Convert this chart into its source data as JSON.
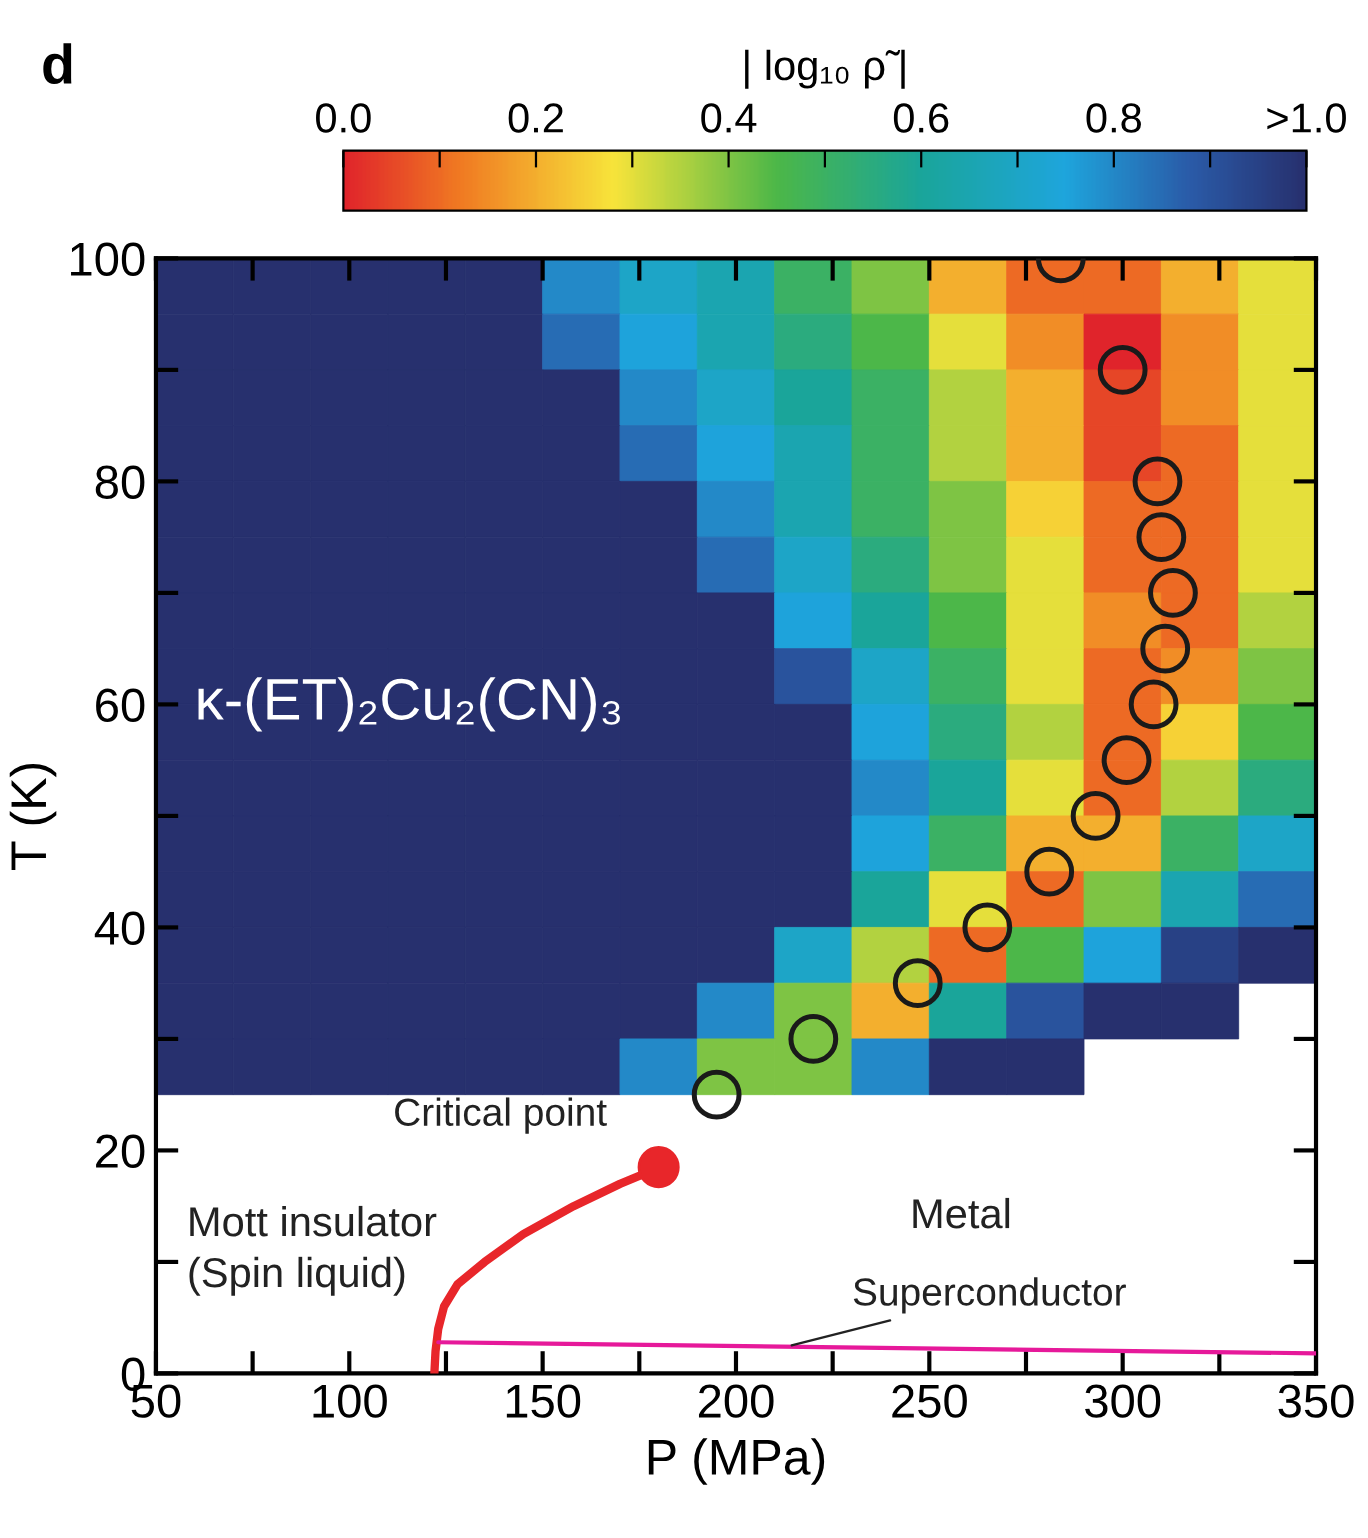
{
  "chart_data": {
    "type": "heatmap",
    "title": "d",
    "xlabel": "P (MPa)",
    "ylabel": "T (K)",
    "clabel": "| log₁₀ ρ̃ |",
    "x": [
      60,
      80,
      100,
      120,
      140,
      160,
      180,
      200,
      220,
      240,
      260,
      280,
      300,
      320,
      340
    ],
    "y": [
      97.5,
      92.5,
      87.5,
      82.5,
      77.5,
      72.5,
      67.5,
      62.5,
      57.5,
      52.5,
      47.5,
      42.5,
      37.5,
      32.5,
      27.5
    ],
    "cells": [
      [
        1,
        1,
        1,
        1,
        1,
        0.8,
        0.7,
        0.65,
        0.5,
        0.4,
        0.2,
        0.1,
        0.1,
        0.2,
        0.3
      ],
      [
        1,
        1,
        1,
        1,
        1,
        0.85,
        0.75,
        0.65,
        0.55,
        0.45,
        0.3,
        0.15,
        0.0,
        0.15,
        0.3
      ],
      [
        1,
        1,
        1,
        1,
        1,
        1,
        0.8,
        0.7,
        0.6,
        0.5,
        0.35,
        0.2,
        0.05,
        0.15,
        0.3
      ],
      [
        1,
        1,
        1,
        1,
        1,
        1,
        0.85,
        0.75,
        0.65,
        0.5,
        0.35,
        0.2,
        0.05,
        0.1,
        0.3
      ],
      [
        1,
        1,
        1,
        1,
        1,
        1,
        1,
        0.8,
        0.65,
        0.5,
        0.4,
        0.25,
        0.1,
        0.1,
        0.3
      ],
      [
        1,
        1,
        1,
        1,
        1,
        1,
        1,
        0.85,
        0.7,
        0.55,
        0.4,
        0.3,
        0.1,
        0.1,
        0.3
      ],
      [
        1,
        1,
        1,
        1,
        1,
        1,
        1,
        1,
        0.75,
        0.6,
        0.45,
        0.3,
        0.15,
        0.1,
        0.35
      ],
      [
        1,
        1,
        1,
        1,
        1,
        1,
        1,
        1,
        0.9,
        0.7,
        0.5,
        0.3,
        0.1,
        0.15,
        0.4
      ],
      [
        1,
        1,
        1,
        1,
        1,
        1,
        1,
        1,
        1,
        0.75,
        0.55,
        0.35,
        0.1,
        0.25,
        0.45
      ],
      [
        1,
        1,
        1,
        1,
        1,
        1,
        1,
        1,
        1,
        0.8,
        0.6,
        0.3,
        0.1,
        0.35,
        0.55
      ],
      [
        1,
        1,
        1,
        1,
        1,
        1,
        1,
        1,
        1,
        0.75,
        0.5,
        0.2,
        0.2,
        0.5,
        0.7
      ],
      [
        1,
        1,
        1,
        1,
        1,
        1,
        1,
        1,
        1,
        0.6,
        0.3,
        0.1,
        0.4,
        0.65,
        0.85
      ],
      [
        1,
        1,
        1,
        1,
        1,
        1,
        1,
        1,
        0.7,
        0.35,
        0.1,
        0.45,
        0.75,
        0.95,
        1
      ],
      [
        1,
        1,
        1,
        1,
        1,
        1,
        1,
        0.8,
        0.4,
        0.2,
        0.6,
        0.9,
        1,
        1,
        null
      ],
      [
        1,
        1,
        1,
        1,
        1,
        1,
        0.8,
        0.4,
        0.4,
        0.8,
        1,
        1,
        null,
        null,
        null
      ]
    ],
    "clim": [
      0,
      1
    ],
    "cticks": [
      {
        "value": 0,
        "label": "0.0"
      },
      {
        "value": 0.1,
        "label": null
      },
      {
        "value": 0.2,
        "label": "0.2"
      },
      {
        "value": 0.3,
        "label": null
      },
      {
        "value": 0.4,
        "label": "0.4"
      },
      {
        "value": 0.5,
        "label": null
      },
      {
        "value": 0.6,
        "label": "0.6"
      },
      {
        "value": 0.7,
        "label": null
      },
      {
        "value": 0.8,
        "label": "0.8"
      },
      {
        "value": 0.9,
        "label": null
      },
      {
        "value": 1,
        "label": ">1.0"
      }
    ],
    "series": [
      {
        "type": "scatter",
        "color": "#1a1a1a",
        "marker": "circle",
        "x": [
          195,
          220,
          247,
          265,
          281,
          293,
          301,
          308,
          311,
          313,
          310,
          309,
          300,
          284
        ],
        "values": [
          25,
          30,
          35,
          40,
          45,
          50,
          55,
          60,
          65,
          70,
          75,
          80,
          90,
          100
        ]
      },
      {
        "type": "line",
        "color": "#e8262a",
        "line_style": "solid",
        "x": [
          122,
          122.3,
          123,
          124.5,
          128,
          135,
          145,
          158,
          170,
          177
        ],
        "values": [
          0,
          2,
          4,
          6,
          8,
          10,
          12.5,
          15,
          17,
          18
        ]
      },
      {
        "type": "scatter",
        "color": "#e8262a",
        "marker": "circle",
        "x": [
          180
        ],
        "values": [
          18.5
        ]
      },
      {
        "type": "line",
        "color": "#e6199a",
        "line_style": "solid",
        "x": [
          123,
          350
        ],
        "values": [
          2.8,
          1.8
        ]
      }
    ],
    "annotations": [
      "κ-(ET)₂Cu₂(CN)₃",
      "Critical point",
      "Mott insulator\n(Spin liquid)",
      "Metal",
      {
        "text": "Superconductor",
        "x": 213,
        "y": 2.4
      }
    ],
    "xlim": [
      50,
      350
    ],
    "ylim": [
      0,
      100
    ],
    "xticks": [
      50,
      {
        "value": 75,
        "label": null
      },
      100,
      {
        "value": 125,
        "label": null
      },
      150,
      {
        "value": 175,
        "label": null
      },
      200,
      {
        "value": 225,
        "label": null
      },
      250,
      {
        "value": 275,
        "label": null
      },
      300,
      {
        "value": 325,
        "label": null
      },
      350
    ],
    "yticks": [
      0,
      {
        "value": 10,
        "label": null
      },
      20,
      {
        "value": 30,
        "label": null
      },
      40,
      {
        "value": 50,
        "label": null
      },
      60,
      {
        "value": 70,
        "label": null
      },
      80,
      {
        "value": 90,
        "label": null
      },
      100
    ],
    "grid": false,
    "legend": false
  }
}
